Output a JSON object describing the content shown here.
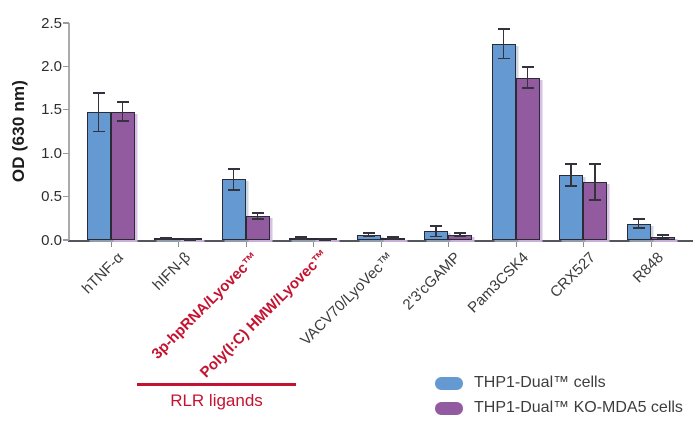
{
  "chart_data": {
    "type": "bar",
    "title": "",
    "ylabel": "OD (630 nm)",
    "ylim": [
      0,
      2.5
    ],
    "yticks": [
      "0.0",
      "0.5",
      "1.0",
      "1.5",
      "2.0",
      "2.5"
    ],
    "grid": false,
    "legend_position": "bottom-right",
    "categories": [
      "hTNF-α",
      "hIFN-β",
      "3p-hpRNA/Lyovec™",
      "Poly(I:C) HMW/Lyovec™",
      "VACV70/LyoVec™",
      "2'3'cGAMP",
      "Pam3CSK4",
      "CRX527",
      "R848"
    ],
    "highlighted_categories": [
      2,
      3
    ],
    "series": [
      {
        "name": "THP1-Dual™ cells",
        "color": "#6499D1",
        "values": [
          1.47,
          0.015,
          0.7,
          0.025,
          0.06,
          0.1,
          2.26,
          0.75,
          0.19
        ],
        "errors": [
          0.22,
          0.008,
          0.12,
          0.012,
          0.018,
          0.06,
          0.17,
          0.13,
          0.05
        ]
      },
      {
        "name": "THP1-Dual™ KO-MDA5 cells",
        "color": "#935B9F",
        "values": [
          1.48,
          0.008,
          0.28,
          0.006,
          0.025,
          0.06,
          1.87,
          0.67,
          0.035
        ],
        "errors": [
          0.11,
          0.005,
          0.035,
          0.004,
          0.01,
          0.02,
          0.12,
          0.21,
          0.018
        ]
      }
    ],
    "annotation": {
      "label": "RLR ligands"
    }
  },
  "colors": {
    "accent_red": "#C51230",
    "axis_light": "#ababab",
    "axis_dark": "#55555e",
    "bar_stroke": "#2b2b38",
    "text": "#3b3b3b"
  }
}
